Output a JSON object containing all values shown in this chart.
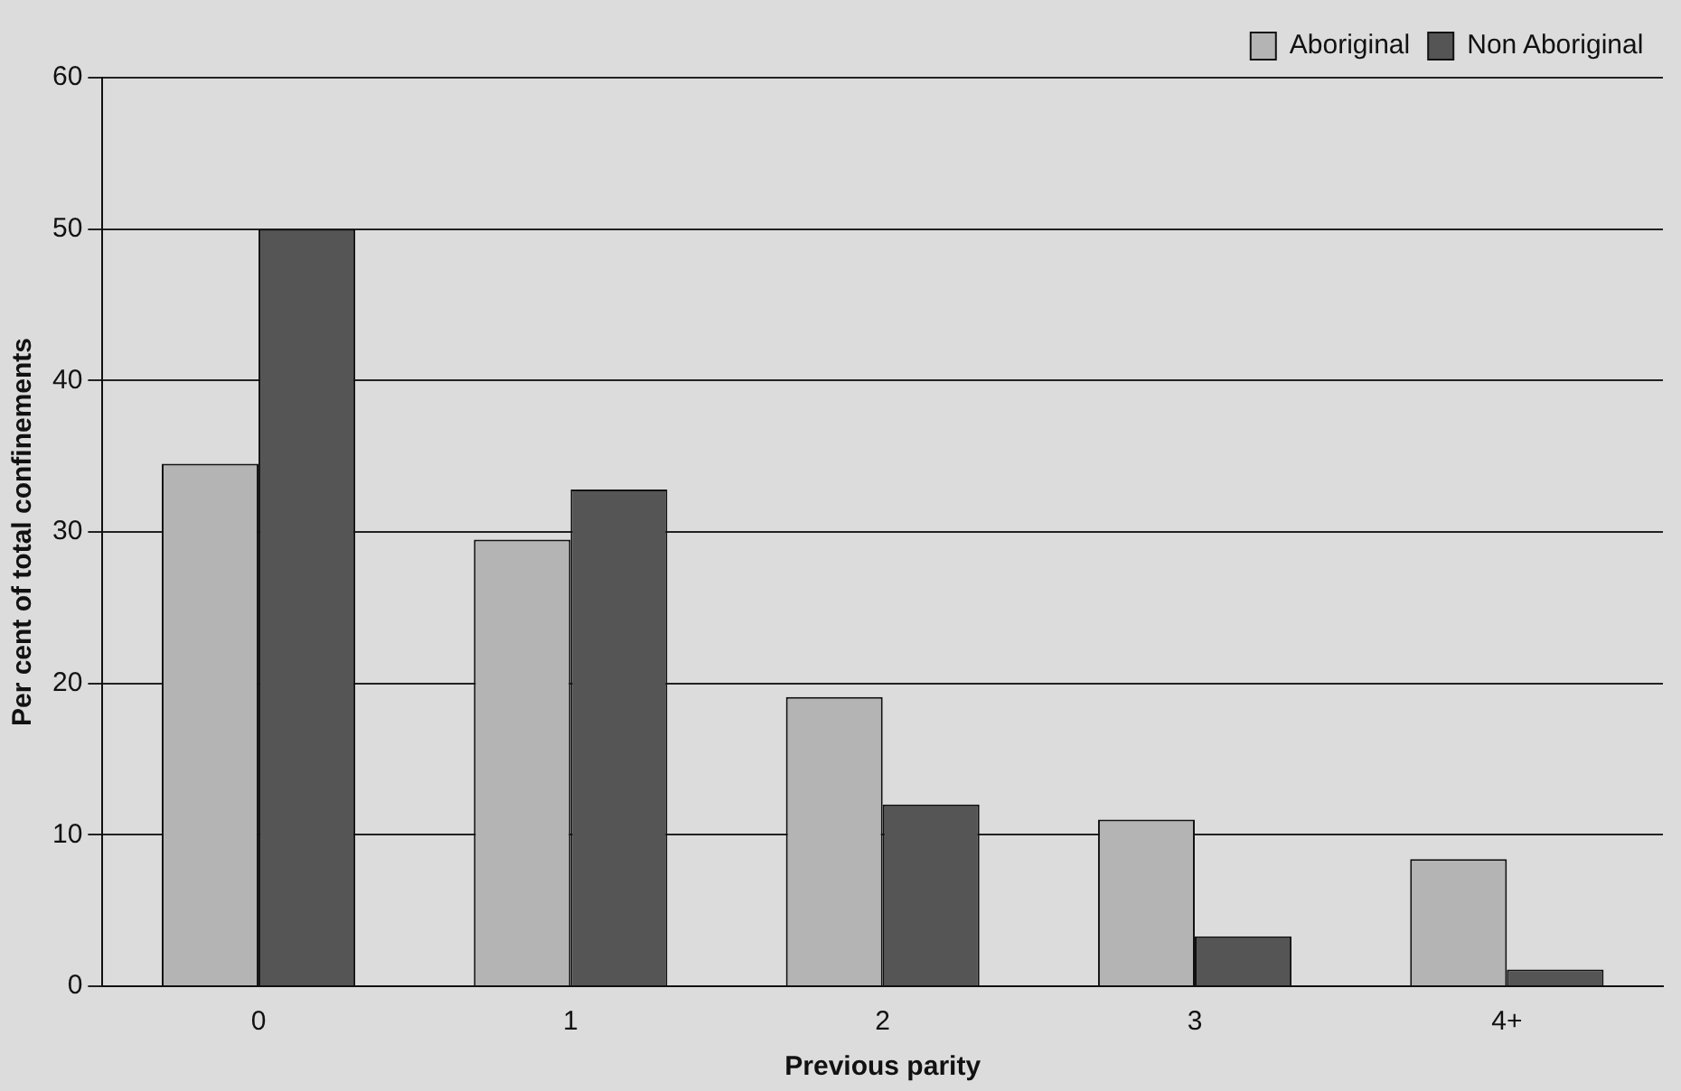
{
  "chart_data": {
    "type": "bar",
    "xlabel": "Previous parity",
    "ylabel": "Per cent of total confinements",
    "categories": [
      "0",
      "1",
      "2",
      "3",
      "4+"
    ],
    "series": [
      {
        "name": "Aboriginal",
        "color": "#b4b4b4",
        "values": [
          34.5,
          29.5,
          19.1,
          11,
          8.4
        ]
      },
      {
        "name": "Non Aboriginal",
        "color": "#555555",
        "values": [
          50,
          32.8,
          12,
          3.3,
          1.1
        ]
      }
    ],
    "ylim": [
      0,
      60
    ],
    "yticks": [
      0,
      10,
      20,
      30,
      40,
      50,
      60
    ],
    "grid": "y",
    "legend": "top right"
  }
}
